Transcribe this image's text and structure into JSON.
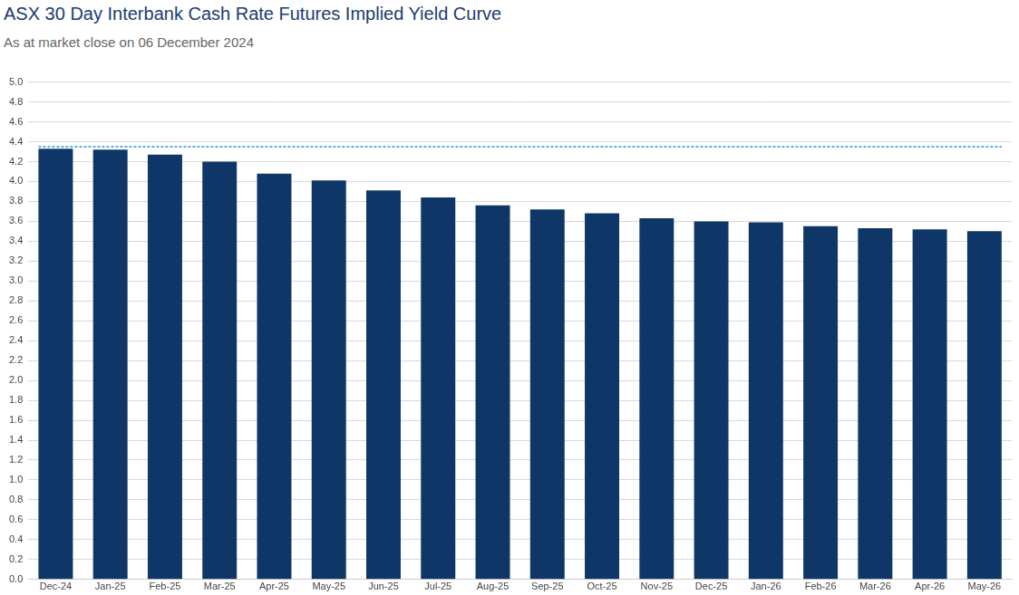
{
  "chart_data": {
    "type": "bar",
    "title": "ASX 30 Day Interbank Cash Rate Futures Implied Yield Curve",
    "subtitle": "As at market close on 06 December 2024",
    "categories": [
      "Dec-24",
      "Jan-25",
      "Feb-25",
      "Mar-25",
      "Apr-25",
      "May-25",
      "Jun-25",
      "Jul-25",
      "Aug-25",
      "Sep-25",
      "Oct-25",
      "Nov-25",
      "Dec-25",
      "Jan-26",
      "Feb-26",
      "Mar-26",
      "Apr-26",
      "May-26"
    ],
    "values": [
      4.33,
      4.32,
      4.27,
      4.2,
      4.08,
      4.01,
      3.91,
      3.84,
      3.76,
      3.72,
      3.68,
      3.63,
      3.6,
      3.59,
      3.55,
      3.53,
      3.52,
      3.5
    ],
    "color": "#0e3768",
    "ylim": [
      0,
      5
    ],
    "yticks": [
      {
        "value": 0,
        "label": "0.0"
      },
      0.2,
      0.4,
      0.6,
      0.8,
      {
        "value": 1,
        "label": "1.0"
      },
      1.2,
      1.4,
      1.6,
      1.8,
      {
        "value": 2,
        "label": "2.0"
      },
      2.2,
      2.4,
      2.6,
      2.8,
      {
        "value": 3,
        "label": "3.0"
      },
      3.2,
      3.4,
      3.6,
      3.8,
      {
        "value": 4,
        "label": "4.0"
      },
      4.2,
      4.4,
      4.6,
      4.8,
      {
        "value": 5,
        "label": "5.0"
      }
    ],
    "grid": true,
    "reference_line": {
      "value": 4.35,
      "color": "#1f9ad6",
      "line_style": "dashed"
    }
  }
}
